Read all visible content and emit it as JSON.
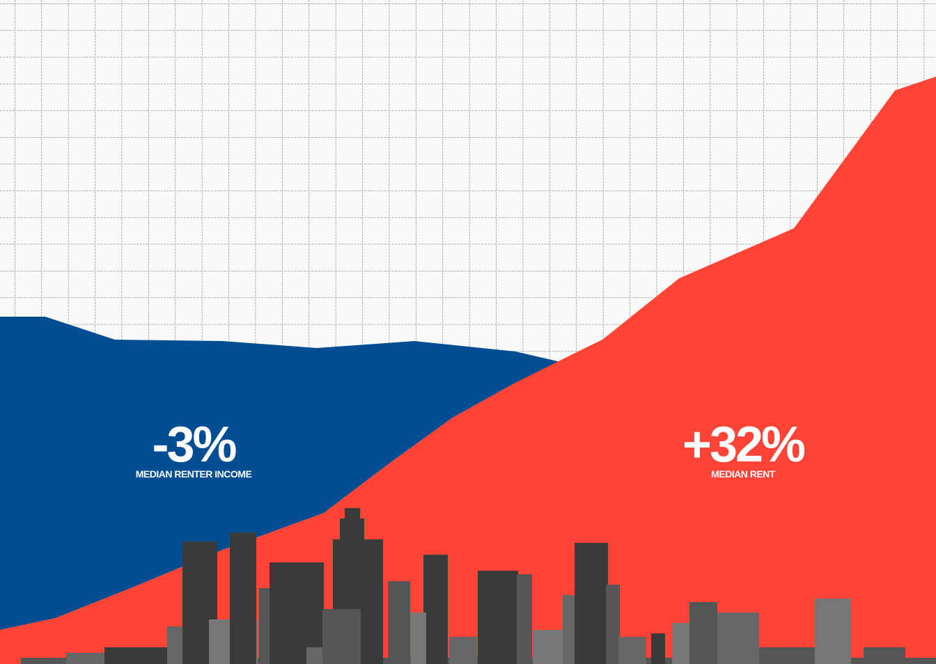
{
  "stats": [
    {
      "value": "-3%",
      "label": "MEDIAN RENTER INCOME"
    },
    {
      "value": "+32%",
      "label": "MEDIAN RENT"
    }
  ]
}
